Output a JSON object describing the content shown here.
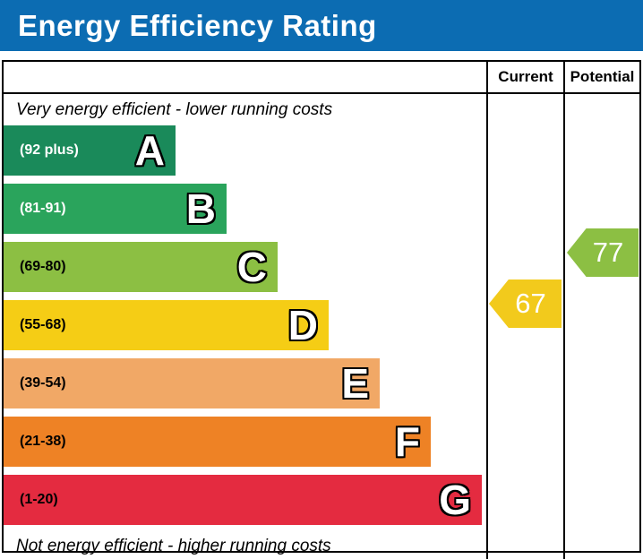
{
  "header": {
    "title": "Energy Efficiency Rating",
    "bg_color": "#0c6cb2"
  },
  "columns": {
    "current_label": "Current",
    "potential_label": "Potential"
  },
  "notes": {
    "top": "Very energy efficient - lower running costs",
    "bottom": "Not energy efficient - higher running costs"
  },
  "bands": [
    {
      "letter": "A",
      "range": "(92 plus)",
      "color": "#1a8a5a",
      "range_text_color": "#ffffff"
    },
    {
      "letter": "B",
      "range": "(81-91)",
      "color": "#2aa45c",
      "range_text_color": "#ffffff"
    },
    {
      "letter": "C",
      "range": "(69-80)",
      "color": "#8cbf43",
      "range_text_color": "#000000"
    },
    {
      "letter": "D",
      "range": "(55-68)",
      "color": "#f5cd15",
      "range_text_color": "#000000"
    },
    {
      "letter": "E",
      "range": "(39-54)",
      "color": "#f1a866",
      "range_text_color": "#000000"
    },
    {
      "letter": "F",
      "range": "(21-38)",
      "color": "#ee8225",
      "range_text_color": "#000000"
    },
    {
      "letter": "G",
      "range": "(1-20)",
      "color": "#e42b40",
      "range_text_color": "#000000"
    }
  ],
  "ratings": {
    "current": {
      "value": "67",
      "color": "#f2ca1c",
      "band": "D"
    },
    "potential": {
      "value": "77",
      "color": "#8cbf43",
      "band": "C"
    }
  },
  "chart_data": {
    "type": "bar",
    "title": "Energy Efficiency Rating",
    "categories": [
      "A",
      "B",
      "C",
      "D",
      "E",
      "F",
      "G"
    ],
    "band_ranges": [
      "92 plus",
      "81-91",
      "69-80",
      "55-68",
      "39-54",
      "21-38",
      "1-20"
    ],
    "band_colors": [
      "#1a8a5a",
      "#2aa45c",
      "#8cbf43",
      "#f5cd15",
      "#f1a866",
      "#ee8225",
      "#e42b40"
    ],
    "scale": [
      1,
      100
    ],
    "series": [
      {
        "name": "Current",
        "value": 67,
        "band": "D",
        "color": "#f2ca1c"
      },
      {
        "name": "Potential",
        "value": 77,
        "band": "C",
        "color": "#8cbf43"
      }
    ],
    "column_headers": [
      "Current",
      "Potential"
    ],
    "annotations": [
      "Very energy efficient - lower running costs",
      "Not energy efficient - higher running costs"
    ],
    "legend_position": "none",
    "grid": false
  }
}
